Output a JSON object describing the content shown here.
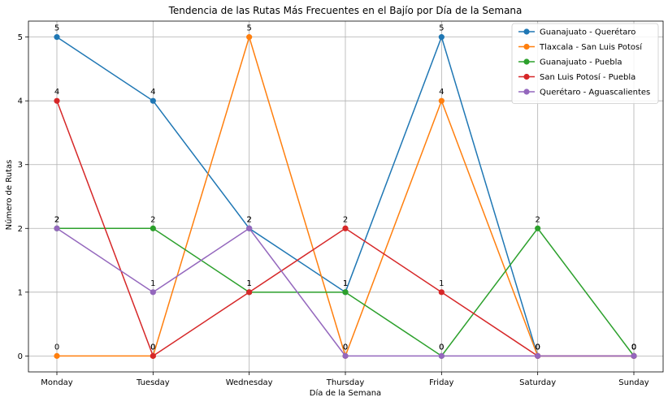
{
  "chart_data": {
    "type": "line",
    "title": "Tendencia de las Rutas Más Frecuentes en el Bajío por Día de la Semana",
    "xlabel": "Día de la Semana",
    "ylabel": "Número de Rutas",
    "categories": [
      "Monday",
      "Tuesday",
      "Wednesday",
      "Thursday",
      "Friday",
      "Saturday",
      "Sunday"
    ],
    "yticks": [
      "0",
      "1",
      "2",
      "3",
      "4",
      "5"
    ],
    "ylim": [
      -0.25,
      5.25
    ],
    "grid": true,
    "legend_position": "top-right",
    "series": [
      {
        "name": "Guanajuato - Querétaro",
        "color": "#1f77b4",
        "values": [
          5,
          4,
          2,
          1,
          5,
          0,
          0
        ]
      },
      {
        "name": "Tlaxcala - San Luis Potosí",
        "color": "#ff7f0e",
        "values": [
          0,
          0,
          5,
          0,
          4,
          0,
          0
        ]
      },
      {
        "name": "Guanajuato - Puebla",
        "color": "#2ca02c",
        "values": [
          2,
          2,
          1,
          1,
          0,
          2,
          0
        ]
      },
      {
        "name": "San Luis Potosí - Puebla",
        "color": "#d62728",
        "values": [
          4,
          0,
          1,
          2,
          1,
          0,
          0
        ]
      },
      {
        "name": "Querétaro - Aguascalientes",
        "color": "#9467bd",
        "values": [
          2,
          1,
          2,
          0,
          0,
          0,
          0
        ]
      }
    ]
  }
}
